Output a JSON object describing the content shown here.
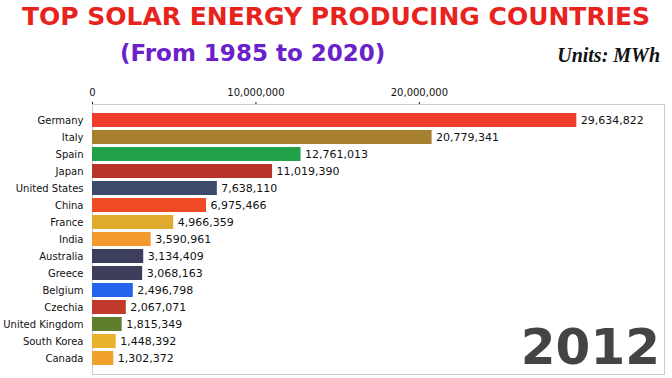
{
  "chart_data": {
    "type": "bar",
    "orientation": "horizontal",
    "title": "TOP SOLAR ENERGY PRODUCING COUNTRIES",
    "subtitle": "(From 1985 to 2020)",
    "annotations": [
      "Units: MWh",
      "2012"
    ],
    "categories": [
      "Germany",
      "Italy",
      "Spain",
      "Japan",
      "United States",
      "China",
      "France",
      "India",
      "Australia",
      "Greece",
      "Belgium",
      "Czechia",
      "United Kingdom",
      "South Korea",
      "Canada"
    ],
    "values": [
      29634822,
      20779341,
      12761013,
      11019390,
      7638110,
      6975466,
      4966359,
      3590961,
      3134409,
      3068163,
      2496798,
      2067071,
      1815349,
      1448392,
      1302372
    ],
    "value_labels": [
      "29,634,822",
      "20,779,341",
      "12,761,013",
      "11,019,390",
      "7,638,110",
      "6,975,466",
      "4,966,359",
      "3,590,961",
      "3,134,409",
      "3,068,163",
      "2,496,798",
      "2,067,071",
      "1,815,349",
      "1,448,392",
      "1,302,372"
    ],
    "colors": [
      "#f03c2c",
      "#a6802e",
      "#22a04a",
      "#b8342a",
      "#3d4a6b",
      "#f04a25",
      "#e0aa2d",
      "#f29a2d",
      "#3c3f5c",
      "#3d3f5a",
      "#2563eb",
      "#c0392b",
      "#5d7f2d",
      "#e9b22d",
      "#f0a02c"
    ],
    "xlim": [
      0,
      35000000
    ],
    "xticks": [
      0,
      {
        "value": 10000000,
        "label": "10,000,000"
      },
      {
        "value": 20000000,
        "label": "20,000,000"
      }
    ],
    "data_labels": true,
    "grid": false
  }
}
